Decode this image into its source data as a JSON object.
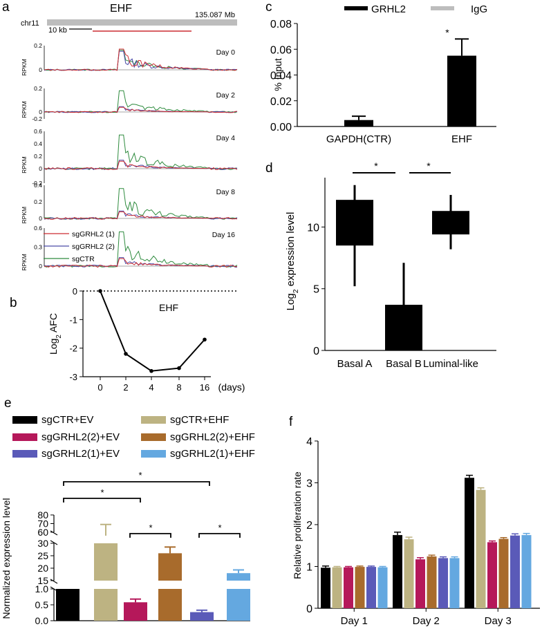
{
  "panels": {
    "a": {
      "letter": "a",
      "gene": "EHF",
      "chrom": "chr11",
      "coord": "135.087 Mb",
      "scale_label": "10 kb",
      "ylabel": "RPKM",
      "days": [
        "Day 0",
        "Day 2",
        "Day 4",
        "Day 8",
        "Day 16"
      ],
      "legend": [
        "sgGRHL2 (1)",
        "sgGRHL2 (2)",
        "sgCTR"
      ],
      "ticks": [
        [
          "0.2",
          "0"
        ],
        [
          "0.2",
          "0",
          "-0.2"
        ],
        [
          "0.6",
          "0.4",
          "0.2",
          "0",
          "-0.2"
        ],
        [
          "0.4",
          "0.2",
          "0"
        ],
        [
          "0.6",
          "0.3",
          "0"
        ]
      ]
    },
    "b": {
      "letter": "b"
    },
    "c": {
      "letter": "c"
    },
    "d": {
      "letter": "d"
    },
    "e": {
      "letter": "e"
    },
    "f": {
      "letter": "f"
    }
  },
  "colors": {
    "sgGRHL2_1": "#cc2b30",
    "sgGRHL2_2": "#4a4aa8",
    "sgCTR": "#2e8b3e",
    "black": "#000000",
    "tan": "#bdb382",
    "crimson": "#b5185a",
    "brown": "#a86b2c",
    "purple": "#5a5ab8",
    "lightblue": "#64a8e0",
    "gray": "#bdbdbd"
  },
  "chart_data": [
    {
      "id": "b",
      "type": "line",
      "title": "EHF",
      "x": [
        0,
        2,
        4,
        8,
        16
      ],
      "x_ticks": [
        "0",
        "2",
        "4",
        "8",
        "16"
      ],
      "values": [
        0,
        -2.2,
        -2.8,
        -2.7,
        -1.7
      ],
      "ylim": [
        -3,
        0
      ],
      "y_ticks": [
        "0",
        "-1",
        "-2",
        "-3"
      ],
      "xlabel": "(days)",
      "ylabel_main": "Log",
      "ylabel_sub": "2",
      "ylabel_end": " AFC"
    },
    {
      "id": "c",
      "type": "bar",
      "categories": [
        "GAPDH(CTR)",
        "EHF"
      ],
      "series": [
        {
          "name": "GRHL2",
          "values": [
            0.005,
            0.055
          ],
          "errors": [
            0.003,
            0.013
          ]
        },
        {
          "name": "IgG",
          "values": [
            0,
            0
          ]
        }
      ],
      "ylim": [
        0,
        0.08
      ],
      "y_ticks": [
        "0.08",
        "0.06",
        "0.04",
        "0.02",
        "0.00"
      ],
      "ylabel": "% Input",
      "annotation": "*"
    },
    {
      "id": "d",
      "type": "box",
      "categories": [
        "Basal A",
        "Basal B",
        "Luminal-like"
      ],
      "boxes": [
        {
          "min": 5.2,
          "q1": 8.5,
          "q3": 12.2,
          "max": 13.4
        },
        {
          "min": 0,
          "q1": 0,
          "q3": 3.7,
          "max": 7.1
        },
        {
          "min": 8.2,
          "q1": 9.4,
          "q3": 11.3,
          "max": 12.6
        }
      ],
      "ylim": [
        0,
        14
      ],
      "y_ticks": [
        "10",
        "5",
        "0"
      ],
      "ylabel_main": "Log",
      "ylabel_sub": "2",
      "ylabel_end": " expression level",
      "annotations": [
        "*",
        "*"
      ]
    },
    {
      "id": "e",
      "type": "bar",
      "legend": [
        "sgCTR+EV",
        "sgCTR+EHF",
        "sgGRHL2(2)+EV",
        "sgGRHL2(2)+EHF",
        "sgGRHL2(1)+EV",
        "sgGRHL2(1)+EHF"
      ],
      "values": [
        1.0,
        56,
        0.58,
        26,
        0.27,
        18
      ],
      "errors": [
        0,
        13,
        0.1,
        2.5,
        0.06,
        1.3
      ],
      "y_ticks": [
        "80",
        "70",
        "60",
        "30",
        "25",
        "20",
        "15",
        "1.0",
        "0.5",
        "0.0"
      ],
      "ylabel": "Normalized expression level",
      "annotations": [
        "*",
        "*",
        "*",
        "*"
      ]
    },
    {
      "id": "f",
      "type": "bar",
      "categories": [
        "Day 1",
        "Day 2",
        "Day 3"
      ],
      "series": [
        {
          "name": "sgCTR+EV",
          "values": [
            0.97,
            1.75,
            3.12
          ],
          "errors": [
            0.04,
            0.07,
            0.06
          ]
        },
        {
          "name": "sgCTR+EHF",
          "values": [
            0.98,
            1.65,
            2.83
          ],
          "errors": [
            0.02,
            0.05,
            0.05
          ]
        },
        {
          "name": "sgGRHL2(2)+EV",
          "values": [
            0.98,
            1.17,
            1.58
          ],
          "errors": [
            0.02,
            0.04,
            0.03
          ]
        },
        {
          "name": "sgGRHL2(2)+EHF",
          "values": [
            0.99,
            1.24,
            1.66
          ],
          "errors": [
            0.02,
            0.03,
            0.03
          ]
        },
        {
          "name": "sgGRHL2(1)+EV",
          "values": [
            0.99,
            1.2,
            1.74
          ],
          "errors": [
            0.02,
            0.03,
            0.04
          ]
        },
        {
          "name": "sgGRHL2(1)+EHF",
          "values": [
            0.98,
            1.2,
            1.75
          ],
          "errors": [
            0.02,
            0.03,
            0.04
          ]
        }
      ],
      "ylim": [
        0,
        4
      ],
      "y_ticks": [
        "0",
        "1",
        "2",
        "3",
        "4"
      ],
      "ylabel": "Relative proliferation rate"
    }
  ]
}
